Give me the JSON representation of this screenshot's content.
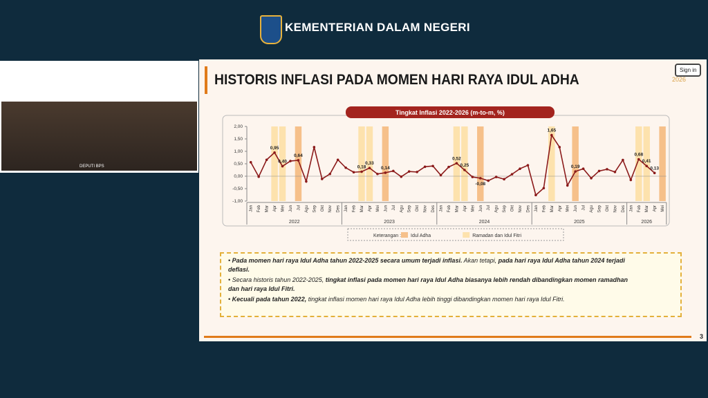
{
  "header": {
    "title": "KEMENTERIAN DALAM NEGERI"
  },
  "video": {
    "caption": "DEPUTI BPS"
  },
  "slide": {
    "title": "HISTORIS INFLASI PADA MOMEN HARI RAYA IDUL ADHA",
    "logo_text": "2026",
    "sign_in": "Sign in",
    "page_number": "3",
    "bullets": [
      {
        "parts": [
          "Pada momen hari raya Idul Adha tahun 2022-2025 secara umum terjadi inflasi.",
          " Akan tetapi, ",
          "pada hari raya Idul Adha tahun 2024 terjadi deflasi."
        ],
        "bold": [
          true,
          false,
          true
        ]
      },
      {
        "parts": [
          "Secara historis tahun 2022-2025, ",
          "tingkat inflasi pada momen hari raya Idul Adha biasanya lebih rendah dibandingkan momen ramadhan dan hari raya Idul Fitri."
        ],
        "bold": [
          false,
          true
        ]
      },
      {
        "parts": [
          "Kecuali pada tahun 2022,",
          " tingkat inflasi momen hari raya Idul Adha lebih tinggi dibandingkan momen hari raya Idul Fitri."
        ],
        "bold": [
          true,
          false
        ]
      }
    ]
  },
  "chart_data": {
    "type": "line",
    "title": "Tingkat Inflasi 2022-2026 (m-to-m, %)",
    "color": "#8b1a1a",
    "categories": [
      "Jan",
      "Feb",
      "Mar",
      "Apr",
      "Mei",
      "Jun",
      "Jul",
      "Agu",
      "Sep",
      "Okt",
      "Nov",
      "Des",
      "Jan",
      "Feb",
      "Mar",
      "Apr",
      "Mei",
      "Jun",
      "Jul",
      "Agu",
      "Sep",
      "Okt",
      "Nov",
      "Des",
      "Jan",
      "Feb",
      "Mar",
      "Apr",
      "Mei",
      "Jun",
      "Jul",
      "Agu",
      "Sep",
      "Okt",
      "Nov",
      "Des",
      "Jan",
      "Feb",
      "Mar",
      "Apr",
      "Mei",
      "Jun",
      "Jul",
      "Agu",
      "Sep",
      "Okt",
      "Nov",
      "Des",
      "Jan",
      "Feb",
      "Mar",
      "Apr",
      "Mei"
    ],
    "year_groups": [
      {
        "label": "2022",
        "count": 12
      },
      {
        "label": "2023",
        "count": 12
      },
      {
        "label": "2024",
        "count": 12
      },
      {
        "label": "2025",
        "count": 12
      },
      {
        "label": "2026",
        "count": 5
      }
    ],
    "values": [
      0.56,
      -0.02,
      0.66,
      0.95,
      0.4,
      0.61,
      0.64,
      -0.21,
      1.17,
      -0.11,
      0.09,
      0.66,
      0.34,
      0.16,
      0.18,
      0.33,
      0.09,
      0.14,
      0.21,
      -0.02,
      0.19,
      0.17,
      0.38,
      0.41,
      0.04,
      0.37,
      0.52,
      0.25,
      -0.03,
      -0.08,
      -0.18,
      -0.03,
      -0.12,
      0.08,
      0.3,
      0.44,
      -0.76,
      -0.48,
      1.65,
      1.17,
      -0.37,
      0.19,
      0.3,
      -0.08,
      0.21,
      0.28,
      0.17,
      0.65,
      -0.15,
      0.68,
      0.41,
      0.13,
      null
    ],
    "value_labels": [
      null,
      null,
      null,
      "0,95",
      "0,40",
      null,
      "0,64",
      null,
      null,
      null,
      null,
      null,
      null,
      null,
      "0,18",
      "0,33",
      null,
      "0,14",
      null,
      null,
      null,
      null,
      null,
      null,
      null,
      null,
      "0,52",
      "0,25",
      null,
      "-0,08",
      null,
      null,
      null,
      null,
      null,
      null,
      null,
      null,
      "1,65",
      null,
      null,
      "0,19",
      null,
      null,
      null,
      null,
      null,
      null,
      null,
      "0,68",
      "0,41",
      "0,13",
      null
    ],
    "ylim": [
      -1,
      2
    ],
    "yticks": [
      {
        "value": 2,
        "label": "2,00"
      },
      {
        "value": 1.5,
        "label": "1,50"
      },
      {
        "value": 1,
        "label": "1,00"
      },
      {
        "value": 0.5,
        "label": "0,50"
      },
      {
        "value": 0,
        "label": "0,00"
      },
      {
        "value": -0.5,
        "label": "-0,50"
      },
      {
        "value": -1,
        "label": "-1,00"
      }
    ],
    "legend_title": "Keterangan :",
    "legend": [
      {
        "name": "Idul Adha",
        "color": "#f6c08a"
      },
      {
        "name": "Ramadan dan Idul Fitri",
        "color": "#fde2ad"
      }
    ],
    "highlight": [
      null,
      null,
      null,
      1,
      1,
      null,
      0,
      null,
      null,
      null,
      null,
      null,
      null,
      null,
      1,
      1,
      null,
      0,
      null,
      null,
      null,
      null,
      null,
      null,
      null,
      null,
      1,
      1,
      null,
      0,
      null,
      null,
      null,
      null,
      null,
      null,
      null,
      null,
      1,
      null,
      null,
      0,
      null,
      null,
      null,
      null,
      null,
      null,
      null,
      1,
      1,
      null,
      0
    ]
  }
}
